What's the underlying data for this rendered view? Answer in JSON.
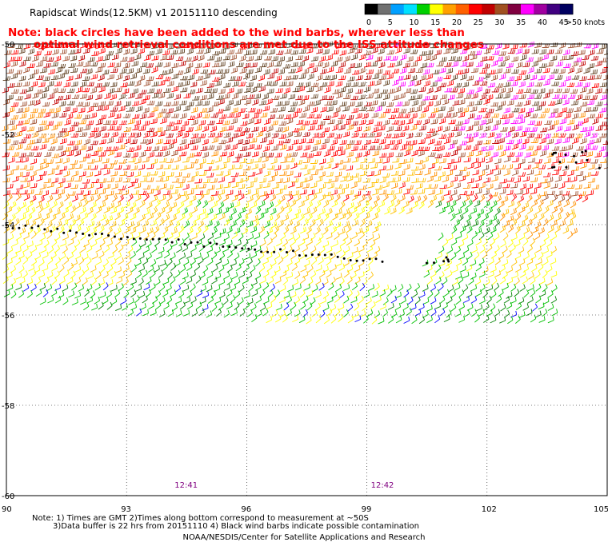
{
  "title": "Rapidscat Winds(12.5KM) v1 20151110 descending",
  "note": {
    "line1": "Note: black circles have been added to the wind barbs, wherever less than",
    "line2": "optimal wind retrieval conditions are met due to the ISS attitude changes"
  },
  "legend": {
    "labels": [
      "0",
      "5",
      "10",
      "15",
      "20",
      "25",
      "30",
      "35",
      "40",
      "45",
      ">50 knots"
    ],
    "colors": [
      "#000000",
      "#707070",
      "#00a0ff",
      "#00e0ff",
      "#00d000",
      "#ffff00",
      "#ffa000",
      "#ff6000",
      "#ff0000",
      "#c00000",
      "#a05020",
      "#800040",
      "#ff00ff",
      "#a000a0",
      "#400080",
      "#000060"
    ]
  },
  "axes": {
    "x_ticks": [
      "90",
      "93",
      "96",
      "99",
      "102",
      "105"
    ],
    "y_ticks": [
      "-50",
      "-52",
      "-54",
      "-56",
      "-58",
      "-60"
    ],
    "x_range": [
      90,
      105
    ],
    "y_range": [
      -60,
      -50
    ]
  },
  "time_labels": [
    {
      "text": "12:41",
      "lon": 94.2
    },
    {
      "text": "12:42",
      "lon": 99.1
    }
  ],
  "barb_colors": {
    "black": "#000000",
    "dark_brown": "#604020",
    "brown": "#a05030",
    "red": "#ff0000",
    "dark_red": "#c00000",
    "orange": "#ff9000",
    "gold": "#ffc000",
    "yellow": "#ffff00",
    "green": "#00c000",
    "dark_green": "#008000",
    "blue": "#0000ff",
    "cyan": "#00a0ff",
    "magenta": "#ff00ff",
    "purple": "#a000a0"
  },
  "footer": {
    "line1": "Note: 1) Times are GMT 2)Times along bottom correspond to measurement at ~50S",
    "line2": "3)Data buffer is 22 hrs from 20151110 4) Black wind barbs indicate possible contamination",
    "line3": "NOAA/NESDIS/Center for Satellite Applications and Research"
  }
}
